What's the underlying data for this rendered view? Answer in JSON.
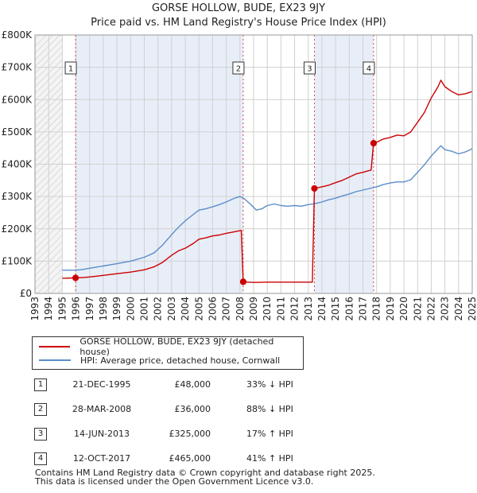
{
  "title": "GORSE HOLLOW, BUDE, EX23 9JY",
  "subtitle": "Price paid vs. HM Land Registry's House Price Index (HPI)",
  "colors": {
    "price": "#cc0000",
    "hpi": "#5b8dc9",
    "band": "#e8eef8",
    "grid": "#d0d0d0"
  },
  "chart_data": {
    "type": "line",
    "title": "GORSE HOLLOW, BUDE, EX23 9JY",
    "xlim": [
      1993,
      2025
    ],
    "ylim": [
      0,
      800000
    ],
    "y_ticks": [
      0,
      100000,
      200000,
      300000,
      400000,
      500000,
      600000,
      700000,
      800000
    ],
    "y_tick_labels": [
      "£0",
      "£100K",
      "£200K",
      "£300K",
      "£400K",
      "£500K",
      "£600K",
      "£700K",
      "£800K"
    ],
    "x_ticks": [
      "1993",
      "1994",
      "1995",
      "1996",
      "1997",
      "1998",
      "1999",
      "2000",
      "2001",
      "2002",
      "2003",
      "2004",
      "2005",
      "2006",
      "2007",
      "2008",
      "2009",
      "2010",
      "2011",
      "2012",
      "2013",
      "2014",
      "2015",
      "2016",
      "2017",
      "2018",
      "2019",
      "2020",
      "2021",
      "2022",
      "2023",
      "2024",
      "2025"
    ],
    "hatch_until": 1995.0,
    "shaded_ranges": [
      [
        1995.97,
        2008.24
      ],
      [
        2013.45,
        2017.78
      ]
    ],
    "series": [
      {
        "name": "GORSE HOLLOW, BUDE, EX23 9JY (detached house)",
        "points": [
          [
            1995.0,
            47000
          ],
          [
            1995.97,
            48000
          ],
          [
            1996.5,
            49000
          ],
          [
            1997,
            51000
          ],
          [
            1998,
            56000
          ],
          [
            1999,
            61000
          ],
          [
            2000,
            66000
          ],
          [
            2001,
            73000
          ],
          [
            2001.7,
            82000
          ],
          [
            2002.3,
            95000
          ],
          [
            2003,
            118000
          ],
          [
            2003.5,
            132000
          ],
          [
            2004,
            140000
          ],
          [
            2004.6,
            155000
          ],
          [
            2005,
            168000
          ],
          [
            2005.5,
            172000
          ],
          [
            2006,
            178000
          ],
          [
            2006.5,
            181000
          ],
          [
            2007,
            186000
          ],
          [
            2007.5,
            190000
          ],
          [
            2008.1,
            195000
          ],
          [
            2008.24,
            36000
          ],
          [
            2009,
            34000
          ],
          [
            2010,
            35000
          ],
          [
            2011,
            35000
          ],
          [
            2012,
            35000
          ],
          [
            2013.3,
            35000
          ],
          [
            2013.45,
            325000
          ],
          [
            2014,
            330000
          ],
          [
            2014.5,
            335000
          ],
          [
            2015,
            343000
          ],
          [
            2015.5,
            350000
          ],
          [
            2016,
            360000
          ],
          [
            2016.5,
            370000
          ],
          [
            2017,
            375000
          ],
          [
            2017.6,
            382000
          ],
          [
            2017.78,
            465000
          ],
          [
            2018,
            468000
          ],
          [
            2018.5,
            478000
          ],
          [
            2019,
            483000
          ],
          [
            2019.5,
            490000
          ],
          [
            2020,
            488000
          ],
          [
            2020.5,
            500000
          ],
          [
            2021,
            530000
          ],
          [
            2021.5,
            560000
          ],
          [
            2022,
            605000
          ],
          [
            2022.5,
            640000
          ],
          [
            2022.7,
            660000
          ],
          [
            2023,
            640000
          ],
          [
            2023.5,
            625000
          ],
          [
            2024,
            615000
          ],
          [
            2024.5,
            618000
          ],
          [
            2025,
            625000
          ]
        ]
      },
      {
        "name": "HPI: Average price, detached house, Cornwall",
        "points": [
          [
            1995.0,
            72000
          ],
          [
            1995.97,
            72000
          ],
          [
            1996.5,
            74000
          ],
          [
            1997,
            78000
          ],
          [
            1998,
            85000
          ],
          [
            1999,
            92000
          ],
          [
            2000,
            100000
          ],
          [
            2001,
            112000
          ],
          [
            2001.7,
            125000
          ],
          [
            2002.3,
            148000
          ],
          [
            2003,
            182000
          ],
          [
            2003.5,
            205000
          ],
          [
            2004,
            225000
          ],
          [
            2004.6,
            245000
          ],
          [
            2005,
            258000
          ],
          [
            2005.5,
            262000
          ],
          [
            2006,
            268000
          ],
          [
            2006.5,
            275000
          ],
          [
            2007,
            283000
          ],
          [
            2007.5,
            293000
          ],
          [
            2008,
            300000
          ],
          [
            2008.3,
            294000
          ],
          [
            2008.8,
            275000
          ],
          [
            2009.2,
            258000
          ],
          [
            2009.6,
            262000
          ],
          [
            2010,
            272000
          ],
          [
            2010.5,
            277000
          ],
          [
            2011,
            272000
          ],
          [
            2011.5,
            270000
          ],
          [
            2012,
            272000
          ],
          [
            2012.5,
            270000
          ],
          [
            2013,
            275000
          ],
          [
            2013.5,
            278000
          ],
          [
            2014,
            283000
          ],
          [
            2014.5,
            290000
          ],
          [
            2015,
            295000
          ],
          [
            2015.5,
            302000
          ],
          [
            2016,
            308000
          ],
          [
            2016.5,
            315000
          ],
          [
            2017,
            320000
          ],
          [
            2017.5,
            325000
          ],
          [
            2018,
            330000
          ],
          [
            2018.5,
            337000
          ],
          [
            2019,
            342000
          ],
          [
            2019.5,
            345000
          ],
          [
            2020,
            345000
          ],
          [
            2020.5,
            352000
          ],
          [
            2021,
            375000
          ],
          [
            2021.5,
            398000
          ],
          [
            2022,
            425000
          ],
          [
            2022.5,
            448000
          ],
          [
            2022.7,
            457000
          ],
          [
            2023,
            445000
          ],
          [
            2023.5,
            440000
          ],
          [
            2024,
            432000
          ],
          [
            2024.5,
            438000
          ],
          [
            2025,
            448000
          ]
        ]
      }
    ],
    "sales": [
      {
        "num": "1",
        "x": 1995.97,
        "price": 48000,
        "date": "21-DEC-1995",
        "price_label": "£48,000",
        "hpi": "33% ↓ HPI"
      },
      {
        "num": "2",
        "x": 2008.24,
        "price": 36000,
        "date": "28-MAR-2008",
        "price_label": "£36,000",
        "hpi": "88% ↓ HPI"
      },
      {
        "num": "3",
        "x": 2013.45,
        "price": 325000,
        "date": "14-JUN-2013",
        "price_label": "£325,000",
        "hpi": "17% ↑ HPI"
      },
      {
        "num": "4",
        "x": 2017.78,
        "price": 465000,
        "date": "12-OCT-2017",
        "price_label": "£465,000",
        "hpi": "41% ↑ HPI"
      }
    ]
  },
  "legend": {
    "price_label": "GORSE HOLLOW, BUDE, EX23 9JY (detached house)",
    "hpi_label": "HPI: Average price, detached house, Cornwall"
  },
  "footer": {
    "line1": "Contains HM Land Registry data © Crown copyright and database right 2025.",
    "line2": "This data is licensed under the Open Government Licence v3.0."
  }
}
